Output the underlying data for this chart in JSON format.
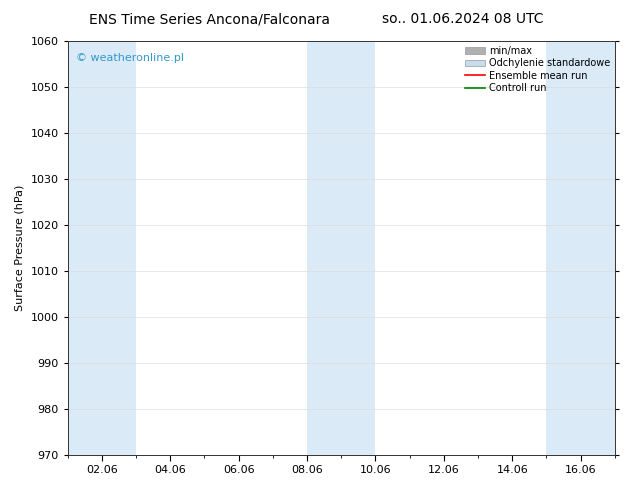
{
  "title_left": "ENS Time Series Ancona/Falconara",
  "title_right": "so.. 01.06.2024 08 UTC",
  "ylabel": "Surface Pressure (hPa)",
  "ylim": [
    970,
    1060
  ],
  "yticks": [
    970,
    980,
    990,
    1000,
    1010,
    1020,
    1030,
    1040,
    1050,
    1060
  ],
  "xtick_labels": [
    "02.06",
    "04.06",
    "06.06",
    "08.06",
    "10.06",
    "12.06",
    "14.06",
    "16.06"
  ],
  "xtick_positions": [
    2,
    4,
    6,
    8,
    10,
    12,
    14,
    16
  ],
  "xlim": [
    1,
    17
  ],
  "watermark": "© weatheronline.pl",
  "watermark_color": "#3399cc",
  "background_color": "#ffffff",
  "plot_bg_color": "#ffffff",
  "shaded_bands": [
    {
      "x_start": 1.0,
      "x_end": 3.0,
      "color": "#daeaf7"
    },
    {
      "x_start": 8.0,
      "x_end": 10.0,
      "color": "#daeaf7"
    },
    {
      "x_start": 15.0,
      "x_end": 17.0,
      "color": "#daeaf7"
    }
  ],
  "legend_entries": [
    {
      "label": "min/max",
      "color": "#b0b0b0",
      "type": "fill"
    },
    {
      "label": "Odchylenie standardowe",
      "color": "#c8dcf0",
      "type": "fill"
    },
    {
      "label": "Ensemble mean run",
      "color": "#ff0000",
      "type": "line"
    },
    {
      "label": "Controll run",
      "color": "#008000",
      "type": "line"
    }
  ],
  "title_fontsize": 10,
  "tick_fontsize": 8,
  "ylabel_fontsize": 8,
  "watermark_fontsize": 8,
  "legend_fontsize": 7
}
